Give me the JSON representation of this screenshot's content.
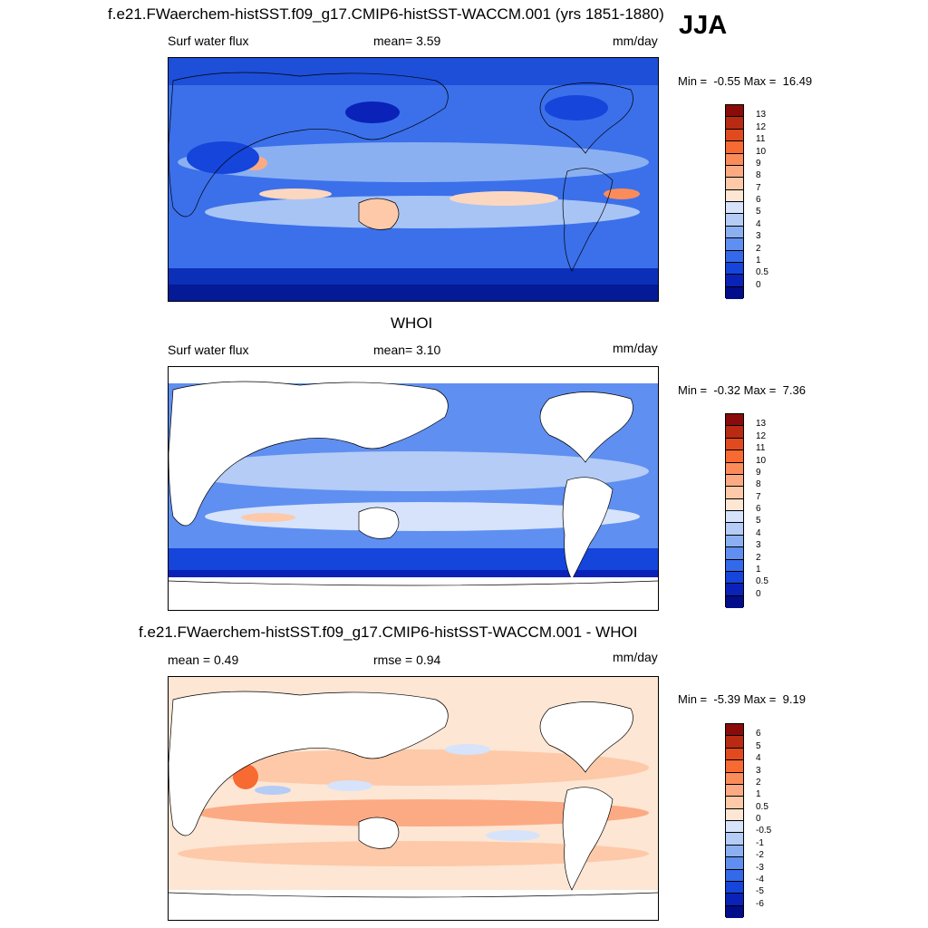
{
  "season": "JJA",
  "units": "mm/day",
  "panels": [
    {
      "title": "f.e21.FWaerchem-histSST.f09_g17.CMIP6-histSST-WACCM.001 (yrs 1851-1880)",
      "left_label": "Surf water flux",
      "mid_label": "mean=   3.59",
      "min": "-0.55",
      "max": "16.49",
      "colorbar_ticks": [
        "13",
        "12",
        "11",
        "10",
        "9",
        "8",
        "7",
        "6",
        "5",
        "4",
        "3",
        "2",
        "1",
        "0.5",
        "0"
      ],
      "colorbar_colors": [
        "#8b0a0a",
        "#b82a12",
        "#e04a1e",
        "#f76a32",
        "#fb8c5a",
        "#fcaa84",
        "#fdc9a9",
        "#fde6d3",
        "#d6e3fb",
        "#b4ccf6",
        "#8bb0f2",
        "#5f8ff0",
        "#3469ea",
        "#1545db",
        "#0a22b8",
        "#020d8a"
      ]
    },
    {
      "title": "WHOI",
      "left_label": "Surf water flux",
      "mid_label": "mean=   3.10",
      "min": "-0.32",
      "max": "7.36",
      "colorbar_ticks": [
        "13",
        "12",
        "11",
        "10",
        "9",
        "8",
        "7",
        "6",
        "5",
        "4",
        "3",
        "2",
        "1",
        "0.5",
        "0"
      ],
      "colorbar_colors": [
        "#8b0a0a",
        "#b82a12",
        "#e04a1e",
        "#f76a32",
        "#fb8c5a",
        "#fcaa84",
        "#fdc9a9",
        "#fde6d3",
        "#d6e3fb",
        "#b4ccf6",
        "#8bb0f2",
        "#5f8ff0",
        "#3469ea",
        "#1545db",
        "#0a22b8",
        "#020d8a"
      ]
    },
    {
      "title": "f.e21.FWaerchem-histSST.f09_g17.CMIP6-histSST-WACCM.001 - WHOI",
      "left_label": "mean =   0.49",
      "mid_label": "rmse =   0.94",
      "min": "-5.39",
      "max": "9.19",
      "colorbar_ticks": [
        "6",
        "5",
        "4",
        "3",
        "2",
        "1",
        "0.5",
        "0",
        "-0.5",
        "-1",
        "-2",
        "-3",
        "-4",
        "-5",
        "-6"
      ],
      "colorbar_colors": [
        "#8b0a0a",
        "#b82a12",
        "#e04a1e",
        "#f76a32",
        "#fb8c5a",
        "#fcaa84",
        "#fdc9a9",
        "#fde6d3",
        "#d6e3fb",
        "#b4ccf6",
        "#8bb0f2",
        "#5f8ff0",
        "#3469ea",
        "#1545db",
        "#0a22b8",
        "#020d8a"
      ]
    }
  ]
}
